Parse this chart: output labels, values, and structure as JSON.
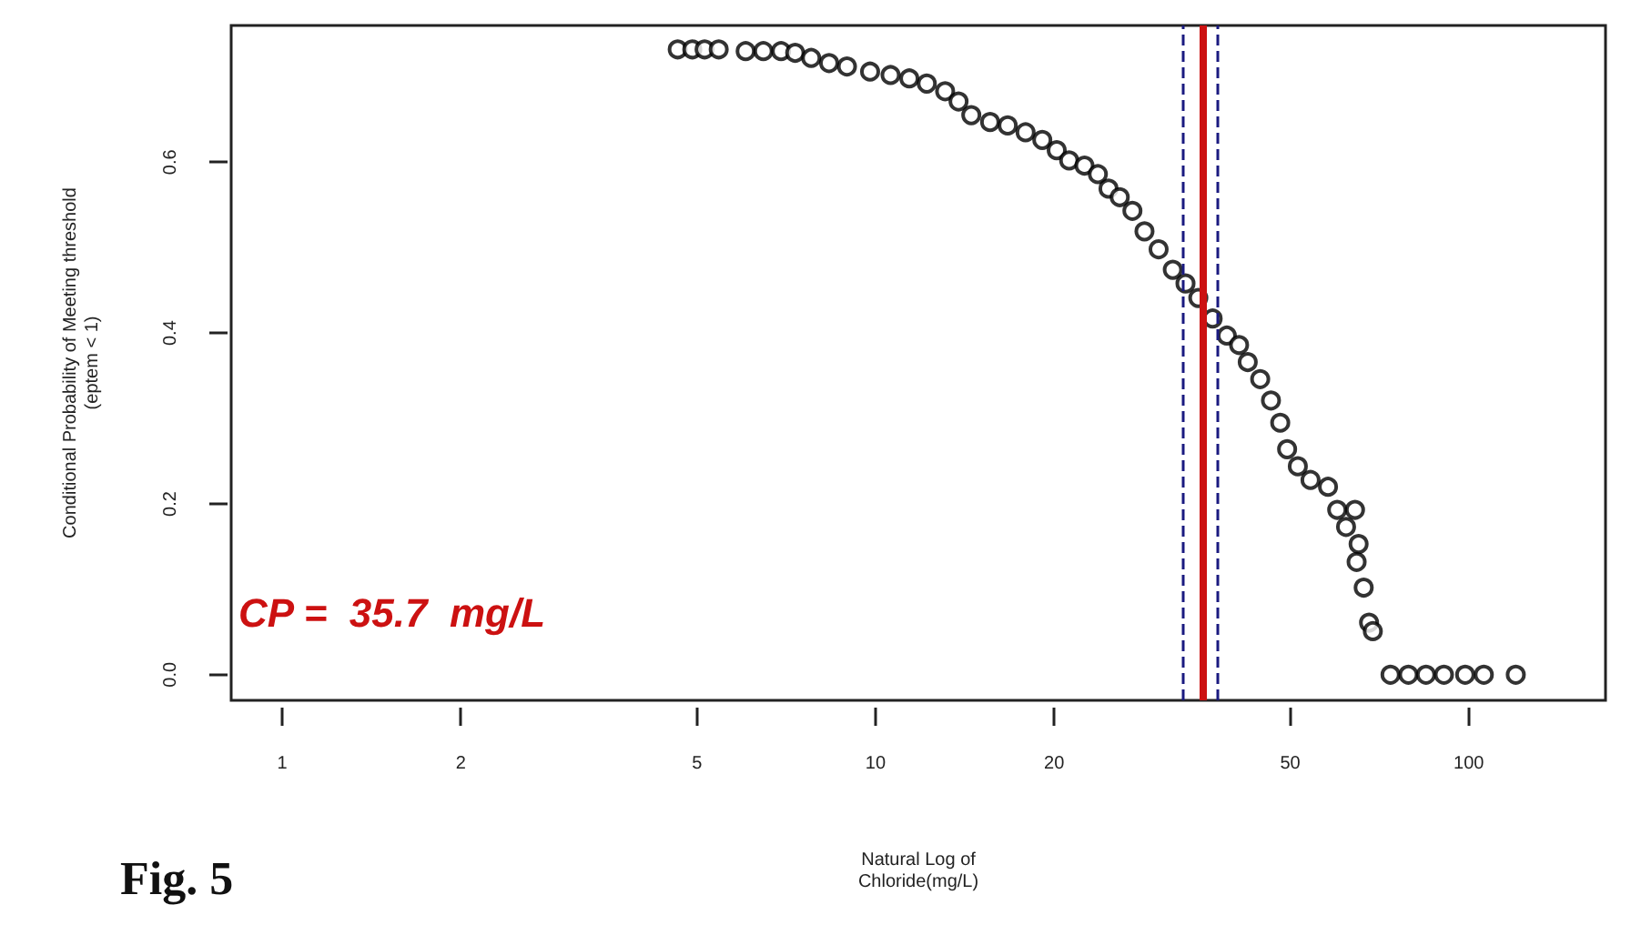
{
  "chart_data": {
    "type": "scatter",
    "xlabel": "Natural Log of\nChloride(mg/L)",
    "ylabel": "Conditional Probability of Meeting threshold\n(eptem < 1)",
    "log": "x",
    "xlim": [
      0.82,
      170
    ],
    "xticks": [
      1,
      2,
      5,
      10,
      20,
      50,
      100
    ],
    "ylim": [
      -0.03,
      0.76
    ],
    "yticks": [
      {
        "value": 0,
        "label": "0.0"
      },
      0.2,
      0.4,
      0.6
    ],
    "marker": "circle",
    "series": [
      {
        "color": "#000000",
        "x": [
          4.64,
          4.91,
          5.15,
          5.44,
          6.04,
          6.47,
          6.93,
          7.32,
          7.79,
          8.35,
          8.95,
          9.79,
          10.6,
          11.4,
          12.2,
          13.1,
          13.8,
          14.5,
          15.6,
          16.7,
          17.9,
          19.1,
          20.2,
          21.2,
          22.5,
          23.7,
          24.7,
          25.8,
          27.1,
          28.4,
          30.0,
          31.7,
          33.3,
          35.0,
          37.0,
          39.1,
          41.0,
          42.4,
          44.5,
          46.4,
          48.1,
          49.4,
          51.5,
          54.1,
          57.9,
          60.0,
          62.1,
          64.3,
          65.2,
          64.7,
          66.5,
          67.9,
          68.9,
          73.8,
          79.1,
          84.7,
          90.8,
          98.6,
          106,
          120
        ],
        "values": [
          0.732,
          0.732,
          0.732,
          0.732,
          0.73,
          0.73,
          0.73,
          0.728,
          0.722,
          0.716,
          0.712,
          0.706,
          0.702,
          0.698,
          0.692,
          0.683,
          0.671,
          0.655,
          0.647,
          0.643,
          0.635,
          0.626,
          0.614,
          0.602,
          0.596,
          0.586,
          0.569,
          0.559,
          0.543,
          0.519,
          0.498,
          0.474,
          0.458,
          0.441,
          0.417,
          0.397,
          0.386,
          0.366,
          0.346,
          0.321,
          0.295,
          0.264,
          0.244,
          0.228,
          0.22,
          0.193,
          0.173,
          0.193,
          0.153,
          0.132,
          0.102,
          0.061,
          0.051,
          0,
          0,
          0,
          0,
          0,
          0,
          0
        ]
      }
    ],
    "ref_lines": [
      {
        "axis": "x",
        "value": 35.7,
        "color": "#cc1111",
        "line_style": "solid"
      },
      {
        "axis": "x",
        "value": 32.9,
        "color": "#1a1a80",
        "line_style": "dashed"
      },
      {
        "axis": "x",
        "value": 37.7,
        "color": "#1a1a80",
        "line_style": "dashed"
      }
    ],
    "annotations": [
      "CP =  35.7  mg/L",
      "Fig. 5"
    ]
  }
}
